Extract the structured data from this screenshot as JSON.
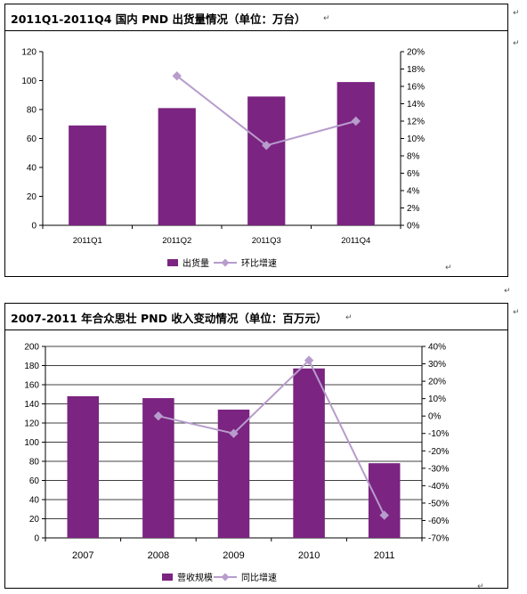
{
  "charts": [
    {
      "title": "2011Q1-2011Q4 国内 PND 出货量情况（单位：万台）",
      "chart_data": {
        "type": "bar",
        "categories": [
          "2011Q1",
          "2011Q2",
          "2011Q3",
          "2011Q4"
        ],
        "series": [
          {
            "name": "出货量",
            "type": "bar",
            "axis": "left",
            "values": [
              69,
              81,
              89,
              99
            ]
          },
          {
            "name": "环比增速",
            "type": "line",
            "axis": "right",
            "values": [
              null,
              17.2,
              9.2,
              12.0
            ]
          }
        ],
        "left_axis": {
          "min": 0,
          "max": 120,
          "step": 20,
          "ticks": [
            "0",
            "20",
            "40",
            "60",
            "80",
            "100",
            "120"
          ]
        },
        "right_axis": {
          "min": 0,
          "max": 20,
          "step": 2,
          "ticks": [
            "0%",
            "2%",
            "4%",
            "6%",
            "8%",
            "10%",
            "12%",
            "14%",
            "16%",
            "18%",
            "20%"
          ]
        },
        "grid": false,
        "legend": "bottom",
        "colors": {
          "bar": "#7b2481",
          "line": "#b79ccc"
        }
      }
    },
    {
      "title": "2007-2011 年合众思壮 PND 收入变动情况（单位：百万元）",
      "chart_data": {
        "type": "bar",
        "categories": [
          "2007",
          "2008",
          "2009",
          "2010",
          "2011"
        ],
        "series": [
          {
            "name": "营收规模",
            "type": "bar",
            "axis": "left",
            "values": [
              148,
              146,
              134,
              177,
              78
            ]
          },
          {
            "name": "同比增速",
            "type": "line",
            "axis": "right",
            "values": [
              null,
              0,
              -10,
              32,
              -57
            ]
          }
        ],
        "left_axis": {
          "min": 0,
          "max": 200,
          "step": 20,
          "ticks": [
            "0",
            "20",
            "40",
            "60",
            "80",
            "100",
            "120",
            "140",
            "160",
            "180",
            "200"
          ]
        },
        "right_axis": {
          "min": -70,
          "max": 40,
          "step": 10,
          "ticks": [
            "-70%",
            "-60%",
            "-50%",
            "-40%",
            "-30%",
            "-20%",
            "-10%",
            "0%",
            "10%",
            "20%",
            "30%",
            "40%"
          ]
        },
        "grid": true,
        "legend": "bottom",
        "colors": {
          "bar": "#7b2481",
          "line": "#b79ccc"
        }
      }
    }
  ],
  "para_marks": [
    "↵",
    "↵",
    "↵",
    "↵",
    "↵",
    "↵",
    "↵",
    "↵"
  ]
}
